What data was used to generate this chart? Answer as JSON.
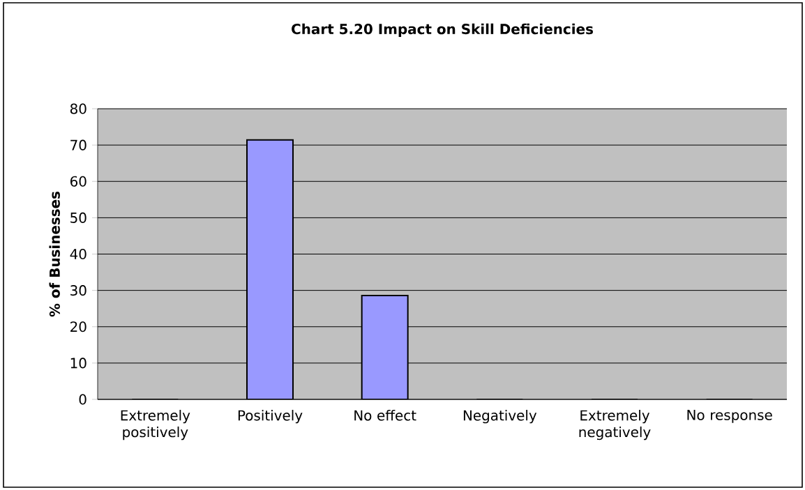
{
  "chart_data": {
    "type": "bar",
    "title": "**Chart 5.20 Impact on Skill Deficiencies**",
    "ylabel": "**% of Businesses**",
    "categories": [
      "Extremely positively",
      "Positively",
      "No effect",
      "Negatively",
      "Extremely negatively",
      "No response"
    ],
    "values": [
      0,
      71.4,
      28.6,
      0,
      0,
      0
    ],
    "color": "#9999ff",
    "ylim": [
      0,
      80
    ],
    "yticks": [
      0,
      10,
      20,
      30,
      40,
      50,
      60,
      70,
      80
    ],
    "grid": "y"
  }
}
